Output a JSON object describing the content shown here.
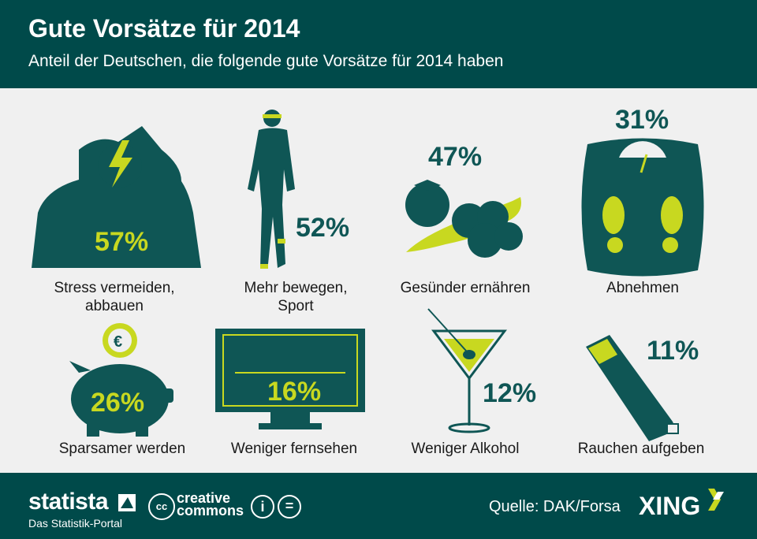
{
  "header": {
    "title": "Gute Vorsätze für 2014",
    "subtitle": "Anteil der Deutschen, die folgende gute Vorsätze für 2014 haben"
  },
  "colors": {
    "teal": "#004a4a",
    "lime": "#c8d820",
    "background": "#f0f0f0"
  },
  "chart_data": {
    "type": "bar",
    "title": "Gute Vorsätze für 2014",
    "subtitle": "Anteil der Deutschen, die folgende gute Vorsätze für 2014 haben",
    "categories": [
      "Stress vermeiden, abbauen",
      "Mehr bewegen, Sport",
      "Gesünder ernähren",
      "Abnehmen",
      "Sparsamer werden",
      "Weniger fernsehen",
      "Weniger Alkohol",
      "Rauchen aufgeben"
    ],
    "values": [
      57,
      52,
      47,
      31,
      26,
      16,
      12,
      11
    ],
    "value_labels": [
      "57%",
      "52%",
      "47%",
      "31%",
      "26%",
      "16%",
      "12%",
      "11%"
    ],
    "labels": [
      "Stress vermeiden,\nabbauen",
      "Mehr bewegen,\nSport",
      "Gesünder ernähren",
      "Abnehmen",
      "Sparsamer werden",
      "Weniger fernsehen",
      "Weniger Alkohol",
      "Rauchen aufgeben"
    ],
    "icons": [
      "stressed-person-icon",
      "runner-icon",
      "vegetables-icon",
      "scale-icon",
      "piggy-bank-icon",
      "tv-icon",
      "martini-icon",
      "cigarette-icon"
    ]
  },
  "footer": {
    "brand": "statista",
    "brand_sub": "Das Statistik-Portal",
    "license_line1": "creative",
    "license_line2": "commons",
    "source": "Quelle: DAK/Forsa",
    "partner": "XING"
  }
}
